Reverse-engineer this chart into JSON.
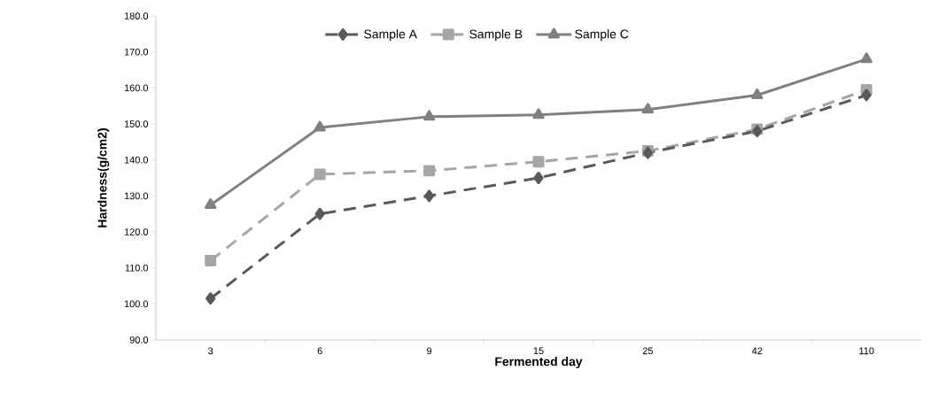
{
  "chart_data": {
    "type": "line",
    "xlabel": "Fermented day",
    "ylabel": "Hardness(g/cm2)",
    "categories": [
      "3",
      "6",
      "9",
      "15",
      "25",
      "42",
      "110"
    ],
    "series": [
      {
        "name": "Sample A",
        "color": "#595959",
        "marker": "diamond",
        "line_style": "dashed",
        "values": [
          101.5,
          125,
          130,
          135,
          142,
          148,
          158
        ]
      },
      {
        "name": "Sample B",
        "color": "#a6a6a6",
        "marker": "square",
        "line_style": "dashed",
        "values": [
          112,
          136,
          137,
          139.5,
          142.5,
          148.5,
          159.5
        ]
      },
      {
        "name": "Sample C",
        "color": "#808080",
        "marker": "triangle",
        "line_style": "solid",
        "values": [
          127.5,
          149,
          152,
          152.5,
          154,
          158,
          168
        ]
      }
    ],
    "ylim": [
      90,
      180
    ],
    "yticks": [
      {
        "value": 90,
        "label": "90.0"
      },
      {
        "value": 100,
        "label": "100.0"
      },
      {
        "value": 110,
        "label": "110.0"
      },
      {
        "value": 120,
        "label": "120.0"
      },
      {
        "value": 130,
        "label": "130.0"
      },
      {
        "value": 140,
        "label": "140.0"
      },
      {
        "value": 150,
        "label": "150.0"
      },
      {
        "value": 160,
        "label": "160.0"
      },
      {
        "value": 170,
        "label": "170.0"
      },
      {
        "value": 180,
        "label": "180.0"
      }
    ],
    "grid": false,
    "legend": "top"
  }
}
